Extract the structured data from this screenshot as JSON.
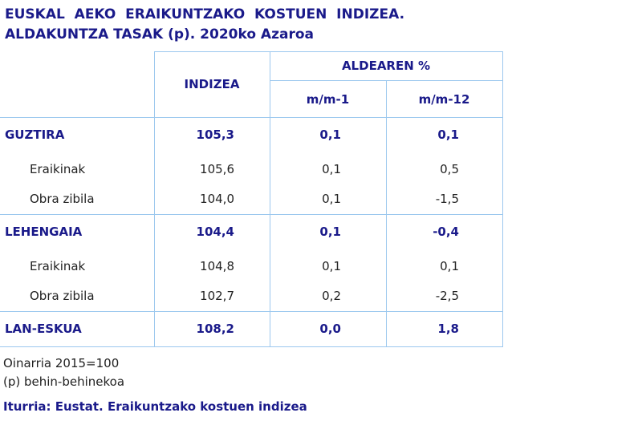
{
  "header": {
    "title": [
      "EUSKAL  AEKO  ERAIKUNTZAKO  KOSTUEN  INDIZEA.",
      "ALDAKUNTZA TASAK (p). 2020ko Azaroa"
    ]
  },
  "table": {
    "columns": {
      "index": "INDIZEA",
      "group": "ALDEAREN %",
      "sub": [
        "m/m-1",
        "m/m-12"
      ]
    },
    "groups": [
      {
        "label": "GUZTIRA",
        "values": [
          "105,3",
          "0,1",
          "0,1"
        ],
        "rows": [
          {
            "label": "Eraikinak",
            "values": [
              "105,6",
              "0,1",
              "0,5"
            ]
          },
          {
            "label": "Obra zibila",
            "values": [
              "104,0",
              "0,1",
              "-1,5"
            ]
          }
        ]
      },
      {
        "label": "LEHENGAIA",
        "values": [
          "104,4",
          "0,1",
          "-0,4"
        ],
        "rows": [
          {
            "label": "Eraikinak",
            "values": [
              "104,8",
              "0,1",
              "0,1"
            ]
          },
          {
            "label": "Obra zibila",
            "values": [
              "102,7",
              "0,2",
              "-2,5"
            ]
          }
        ]
      },
      {
        "label": "LAN-ESKUA",
        "values": [
          "108,2",
          "0,0",
          "1,8"
        ],
        "rows": []
      }
    ]
  },
  "notes": [
    "Oinarria 2015=100",
    "(p) behin-behinekoa"
  ],
  "source": "Iturria: Eustat. Eraikuntzako kostuen indizea"
}
